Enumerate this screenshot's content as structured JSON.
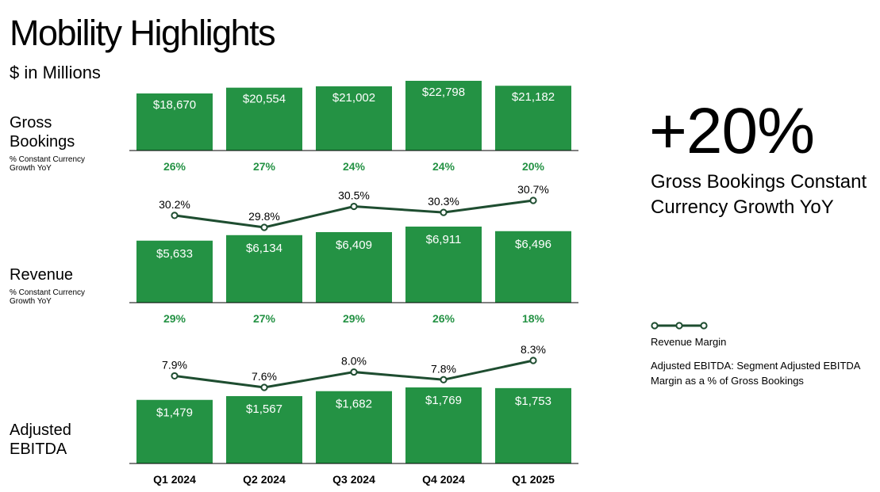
{
  "page": {
    "title": "Mobility Highlights",
    "subtitle": "$ in Millions",
    "big_stat": "+20%",
    "big_stat_desc": "Gross Bookings Constant Currency Growth YoY",
    "legend_label": "Revenue Margin",
    "legend_note": "Adjusted EBITDA: Segment Adjusted EBITDA Margin as a % of Gross Bookings"
  },
  "colors": {
    "bar": "#249244",
    "line": "#1e4d30",
    "growth_text": "#249244",
    "axis": "#000000"
  },
  "chart_data": [
    {
      "type": "bar",
      "name": "gross-bookings",
      "row_label": "Gross Bookings",
      "row_sublabel": "% Constant Currency Growth YoY",
      "categories": [
        "Q1 2024",
        "Q2 2024",
        "Q3 2024",
        "Q4 2024",
        "Q1 2025"
      ],
      "values": [
        18670,
        20554,
        21002,
        22798,
        21182
      ],
      "value_labels": [
        "$18,670",
        "$20,554",
        "$21,002",
        "$22,798",
        "$21,182"
      ],
      "growth_labels": [
        "26%",
        "27%",
        "24%",
        "24%",
        "20%"
      ]
    },
    {
      "type": "bar",
      "name": "revenue",
      "row_label": "Revenue",
      "row_sublabel": "% Constant Currency Growth YoY",
      "categories": [
        "Q1 2024",
        "Q2 2024",
        "Q3 2024",
        "Q4 2024",
        "Q1 2025"
      ],
      "values": [
        5633,
        6134,
        6409,
        6911,
        6496
      ],
      "value_labels": [
        "$5,633",
        "$6,134",
        "$6,409",
        "$6,911",
        "$6,496"
      ],
      "growth_labels": [
        "29%",
        "27%",
        "29%",
        "26%",
        "18%"
      ],
      "margin_series": {
        "name": "Revenue Margin",
        "values": [
          30.2,
          29.8,
          30.5,
          30.3,
          30.7
        ],
        "labels": [
          "30.2%",
          "29.8%",
          "30.5%",
          "30.3%",
          "30.7%"
        ]
      }
    },
    {
      "type": "bar",
      "name": "adjusted-ebitda",
      "row_label": "Adjusted EBITDA",
      "row_sublabel": "",
      "categories": [
        "Q1 2024",
        "Q2 2024",
        "Q3 2024",
        "Q4 2024",
        "Q1 2025"
      ],
      "values": [
        1479,
        1567,
        1682,
        1769,
        1753
      ],
      "value_labels": [
        "$1,479",
        "$1,567",
        "$1,682",
        "$1,769",
        "$1,753"
      ],
      "growth_labels": [],
      "margin_series": {
        "name": "Adjusted EBITDA Margin",
        "values": [
          7.9,
          7.6,
          8.0,
          7.8,
          8.3
        ],
        "labels": [
          "7.9%",
          "7.6%",
          "8.0%",
          "7.8%",
          "8.3%"
        ]
      }
    }
  ],
  "x_axis": {
    "categories": [
      "Q1 2024",
      "Q2 2024",
      "Q3 2024",
      "Q4 2024",
      "Q1 2025"
    ]
  }
}
